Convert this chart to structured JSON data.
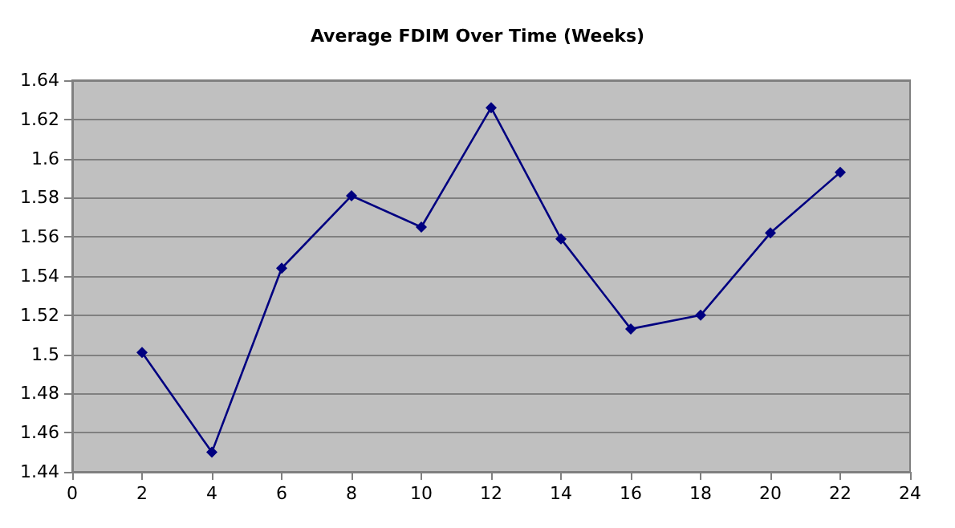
{
  "chart_data": {
    "type": "line",
    "title": "Average FDIM Over Time (Weeks)",
    "x": [
      2,
      4,
      6,
      8,
      10,
      12,
      14,
      16,
      18,
      20,
      22
    ],
    "values": [
      1.501,
      1.45,
      1.544,
      1.581,
      1.565,
      1.626,
      1.559,
      1.513,
      1.52,
      1.562,
      1.593
    ],
    "color": "#000080",
    "xlim": [
      0,
      24
    ],
    "xticks": [
      0,
      2,
      4,
      6,
      8,
      10,
      12,
      14,
      16,
      18,
      20,
      22,
      24
    ],
    "ylim": [
      1.44,
      1.64
    ],
    "yticks": [
      1.44,
      1.46,
      1.48,
      1.5,
      1.52,
      1.54,
      1.56,
      1.58,
      1.6,
      1.62,
      1.64
    ],
    "grid": "y",
    "marker": "diamond",
    "line_style": "solid"
  }
}
